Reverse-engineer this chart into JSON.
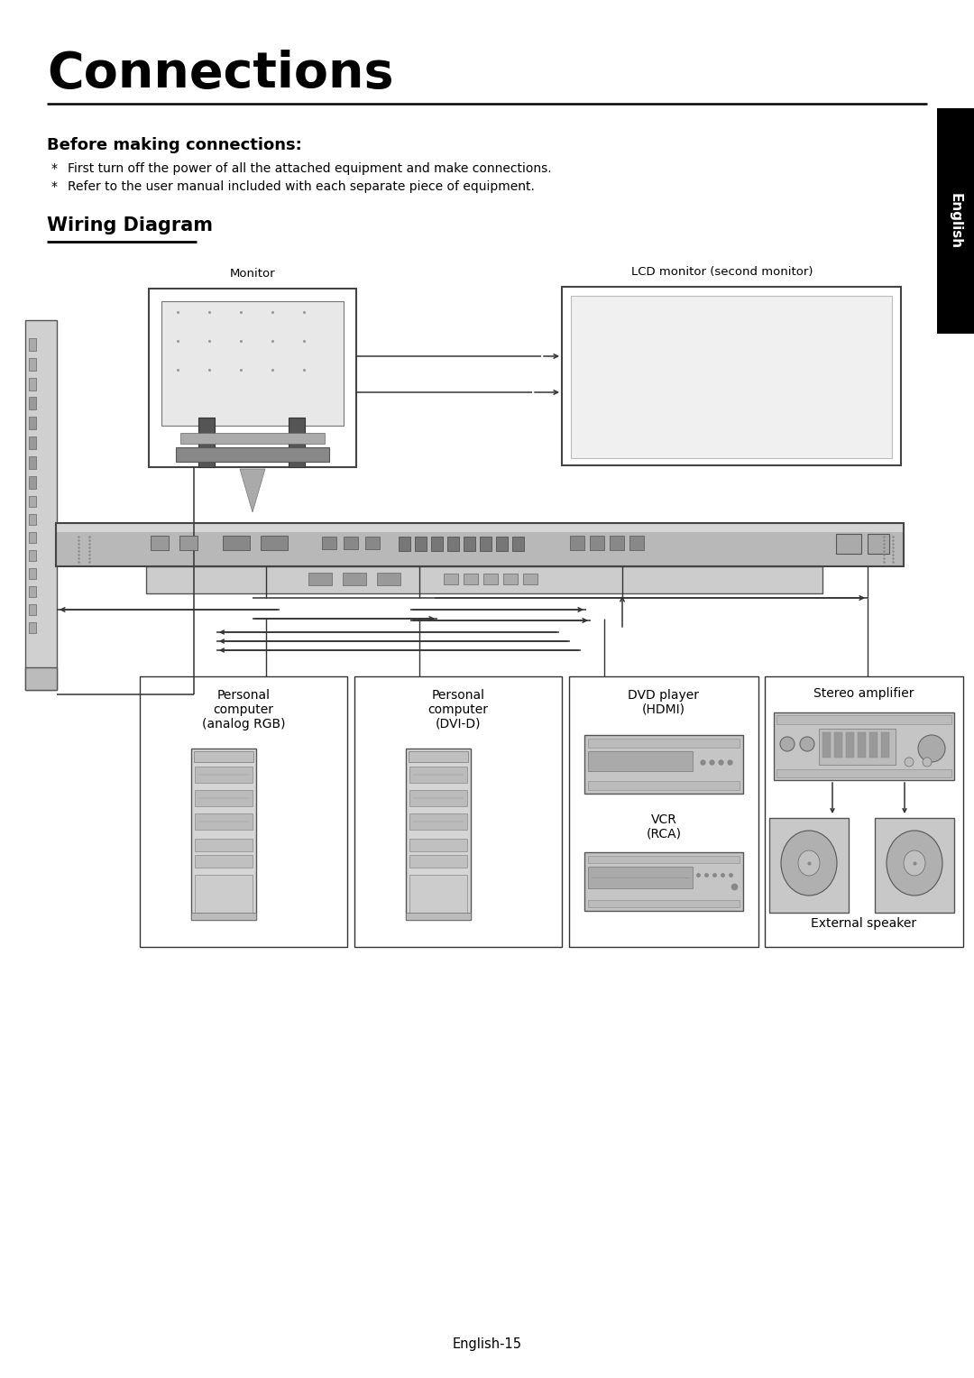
{
  "title": "Connections",
  "section1_title": "Before making connections:",
  "bullet1": "First turn off the power of all the attached equipment and make connections.",
  "bullet2": "Refer to the user manual included with each separate piece of equipment.",
  "section2_title": "Wiring Diagram",
  "label_monitor": "Monitor",
  "label_lcd": "LCD monitor (second monitor)",
  "label_pc1": "Personal\ncomputer\n(analog RGB)",
  "label_pc2": "Personal\ncomputer\n(DVI-D)",
  "label_dvd": "DVD player\n(HDMI)",
  "label_vcr": "VCR\n(RCA)",
  "label_stereo": "Stereo amplifier",
  "label_speaker": "External speaker",
  "label_english": "English",
  "footer": "English-15",
  "bg_color": "#ffffff",
  "text_color": "#000000",
  "tab_bg": "#000000",
  "tab_text": "#ffffff",
  "lc": "#777777",
  "lc_dark": "#333333",
  "gray_light": "#d8d8d8",
  "gray_med": "#b0b0b0",
  "gray_dark": "#888888"
}
